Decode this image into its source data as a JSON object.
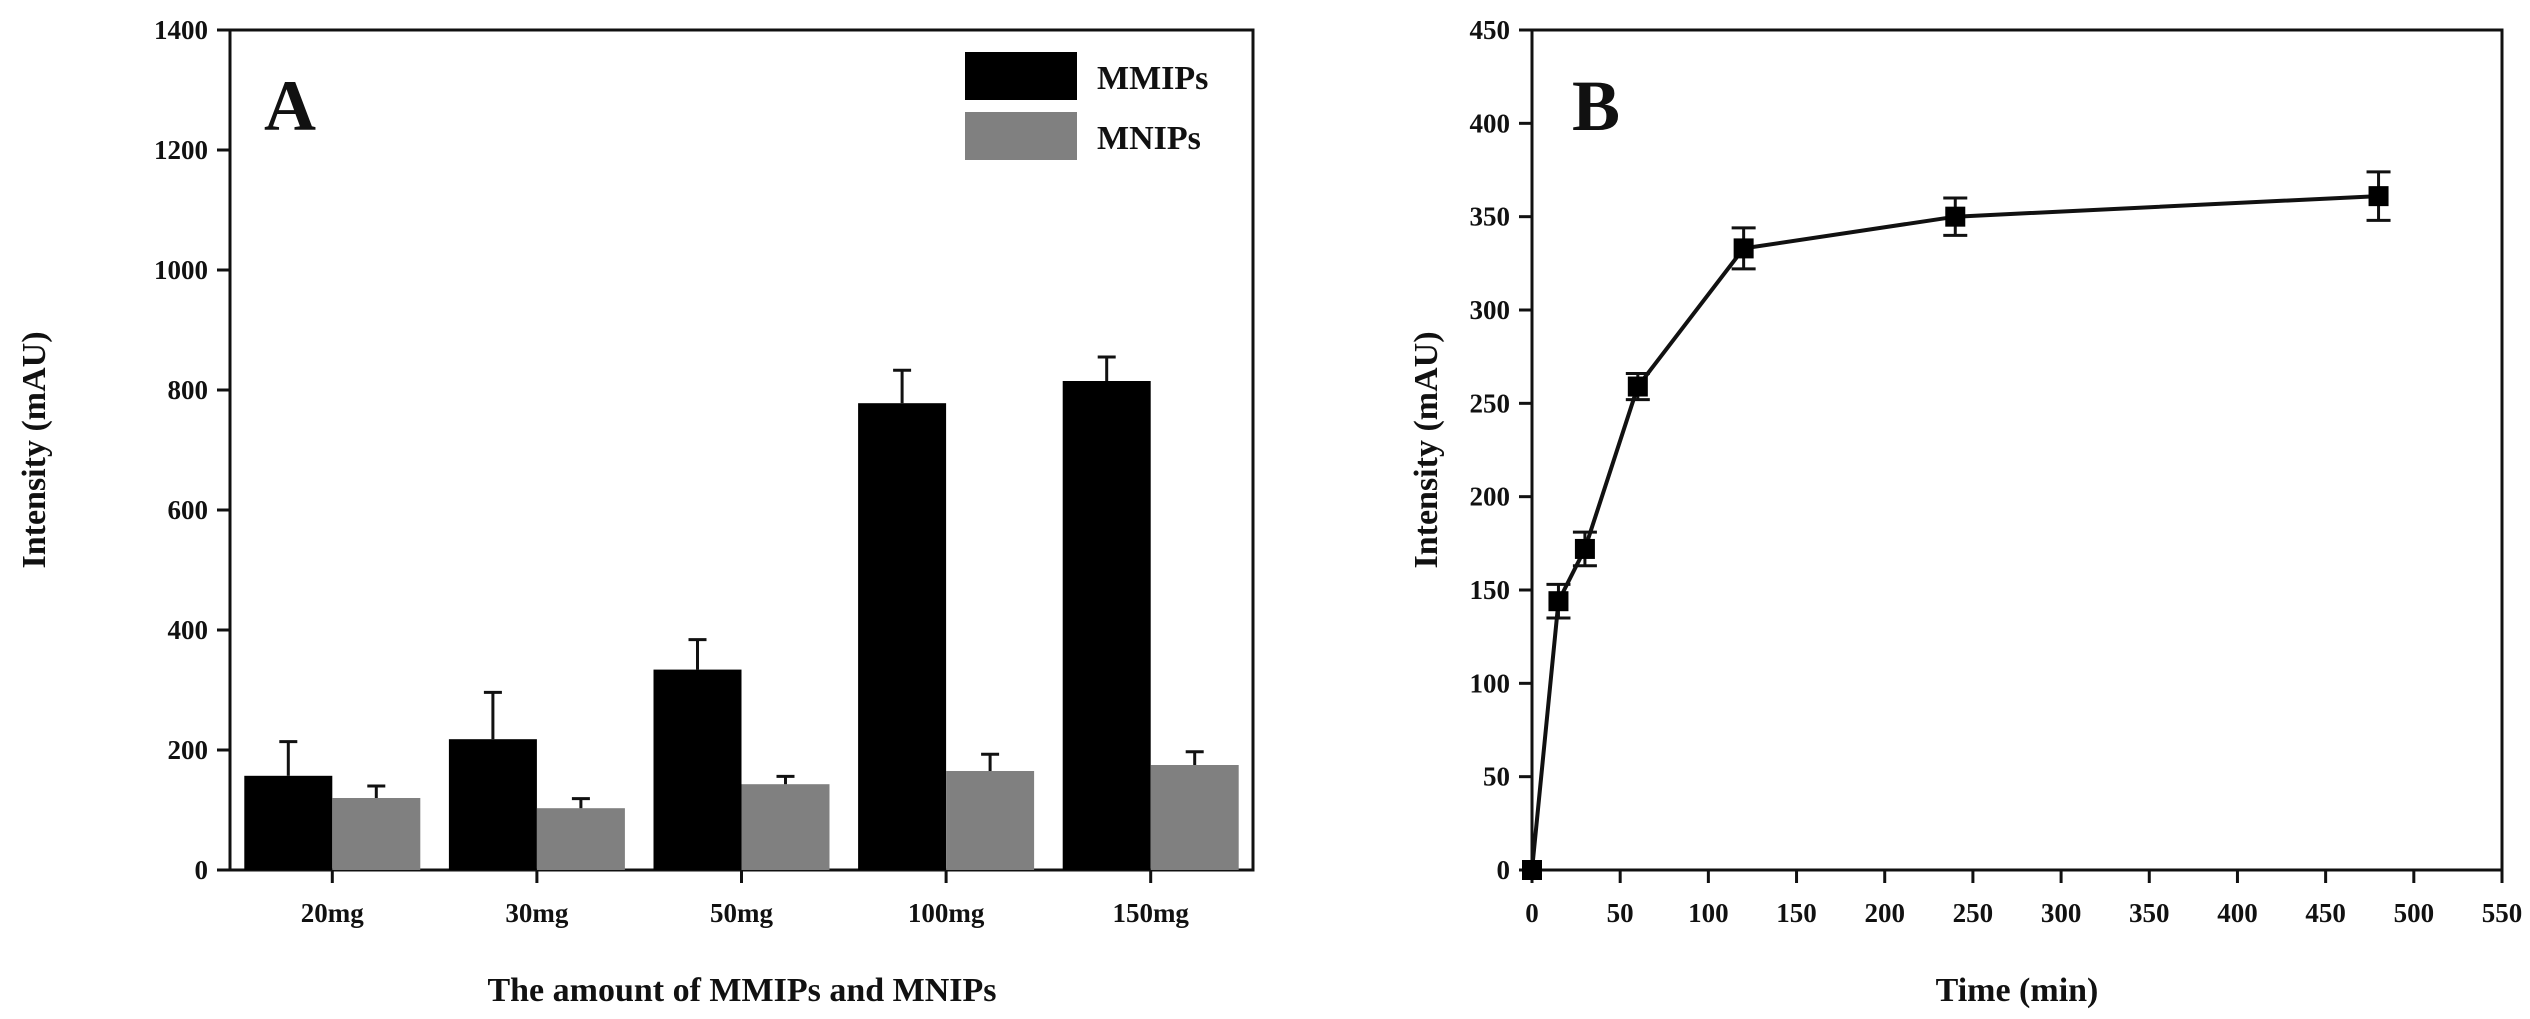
{
  "chart_data": [
    {
      "panel": "A",
      "type": "bar",
      "title": "",
      "xlabel": "The amount of MMIPs and MNIPs",
      "ylabel": "Intensity (mAU)",
      "categories": [
        "20mg",
        "30mg",
        "50mg",
        "100mg",
        "150mg"
      ],
      "series": [
        {
          "name": "MMIPs",
          "color": "#000000",
          "values": [
            157,
            218,
            334,
            778,
            815
          ],
          "errors": [
            57,
            78,
            50,
            55,
            40
          ]
        },
        {
          "name": "MNIPs",
          "color": "#808080",
          "values": [
            120,
            103,
            143,
            165,
            175
          ],
          "errors": [
            20,
            16,
            13,
            28,
            22
          ]
        }
      ],
      "ylim": [
        0,
        1400
      ],
      "yticks": [
        0,
        200,
        400,
        600,
        800,
        1000,
        1200,
        1400
      ],
      "grid": false,
      "legend": "top-right"
    },
    {
      "panel": "B",
      "type": "line",
      "title": "",
      "xlabel": "Time (min)",
      "ylabel": "Intensity (mAU)",
      "series": [
        {
          "name": "Intensity",
          "color": "#000000",
          "marker": "square",
          "x": [
            0,
            15,
            30,
            60,
            120,
            240,
            480
          ],
          "y": [
            0,
            144,
            172,
            259,
            333,
            350,
            361
          ],
          "errors": [
            0,
            9,
            9,
            7,
            11,
            10,
            13
          ]
        }
      ],
      "xlim": [
        0,
        550
      ],
      "xticks": [
        0,
        50,
        100,
        150,
        200,
        250,
        300,
        350,
        400,
        450,
        500,
        550
      ],
      "ylim": [
        0,
        450
      ],
      "yticks": [
        0,
        50,
        100,
        150,
        200,
        250,
        300,
        350,
        400,
        450
      ],
      "grid": false
    }
  ]
}
